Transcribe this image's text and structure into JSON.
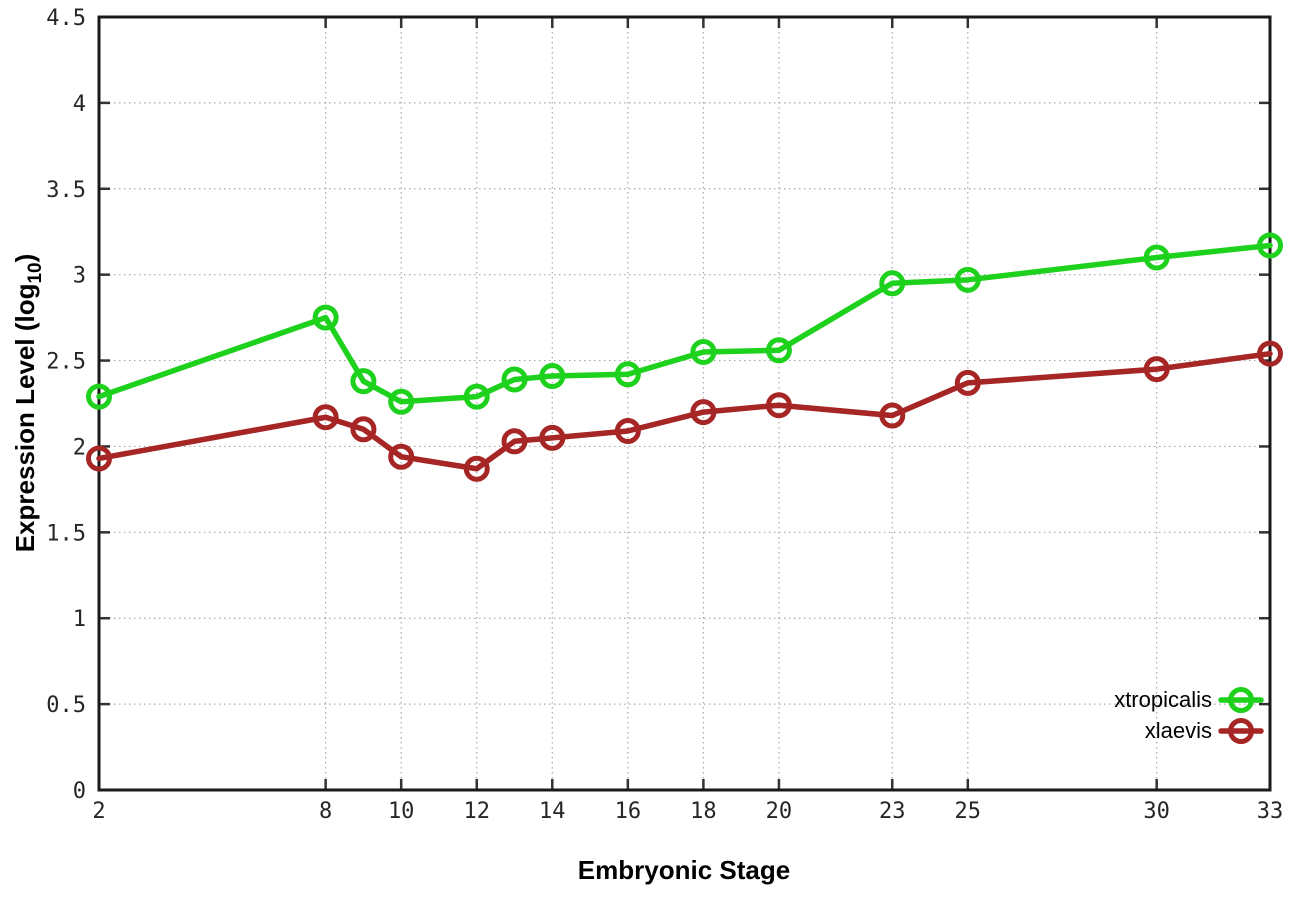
{
  "chart_data": {
    "type": "line",
    "title": "",
    "xlabel": "Embryonic Stage",
    "ylabel_prefix": "Expression Level (log",
    "ylabel_sub": "10",
    "ylabel_close": ")",
    "xlim": [
      2,
      33
    ],
    "ylim": [
      0,
      4.5
    ],
    "grid": true,
    "legend_position": "bottom-right-inside",
    "marker_style": "open-circle",
    "x": [
      2,
      8,
      9,
      10,
      12,
      13,
      14,
      16,
      18,
      20,
      23,
      25,
      30,
      33
    ],
    "xticks": [
      "2",
      "8",
      "10",
      "12",
      "14",
      "16",
      "18",
      "20",
      "23",
      "25",
      "30",
      "33"
    ],
    "yticks": [
      "0",
      "0.5",
      "1",
      "1.5",
      "2",
      "2.5",
      "3",
      "3.5",
      "4",
      "4.5"
    ],
    "series": [
      {
        "name": "xtropicalis",
        "color": "#1dd11d",
        "values": [
          2.29,
          2.75,
          2.38,
          2.26,
          2.29,
          2.39,
          2.41,
          2.42,
          2.55,
          2.56,
          2.95,
          2.97,
          3.1,
          3.17
        ]
      },
      {
        "name": "xlaevis",
        "color": "#a62525",
        "values": [
          1.93,
          2.17,
          2.1,
          1.94,
          1.87,
          2.03,
          2.05,
          2.09,
          2.2,
          2.24,
          2.18,
          2.37,
          2.45,
          2.54
        ]
      }
    ],
    "colors": {
      "background": "#ffffff",
      "border": "#1a1a1a",
      "grid": "#a8a8a8",
      "tick": "#333333",
      "text": "#262626"
    }
  }
}
